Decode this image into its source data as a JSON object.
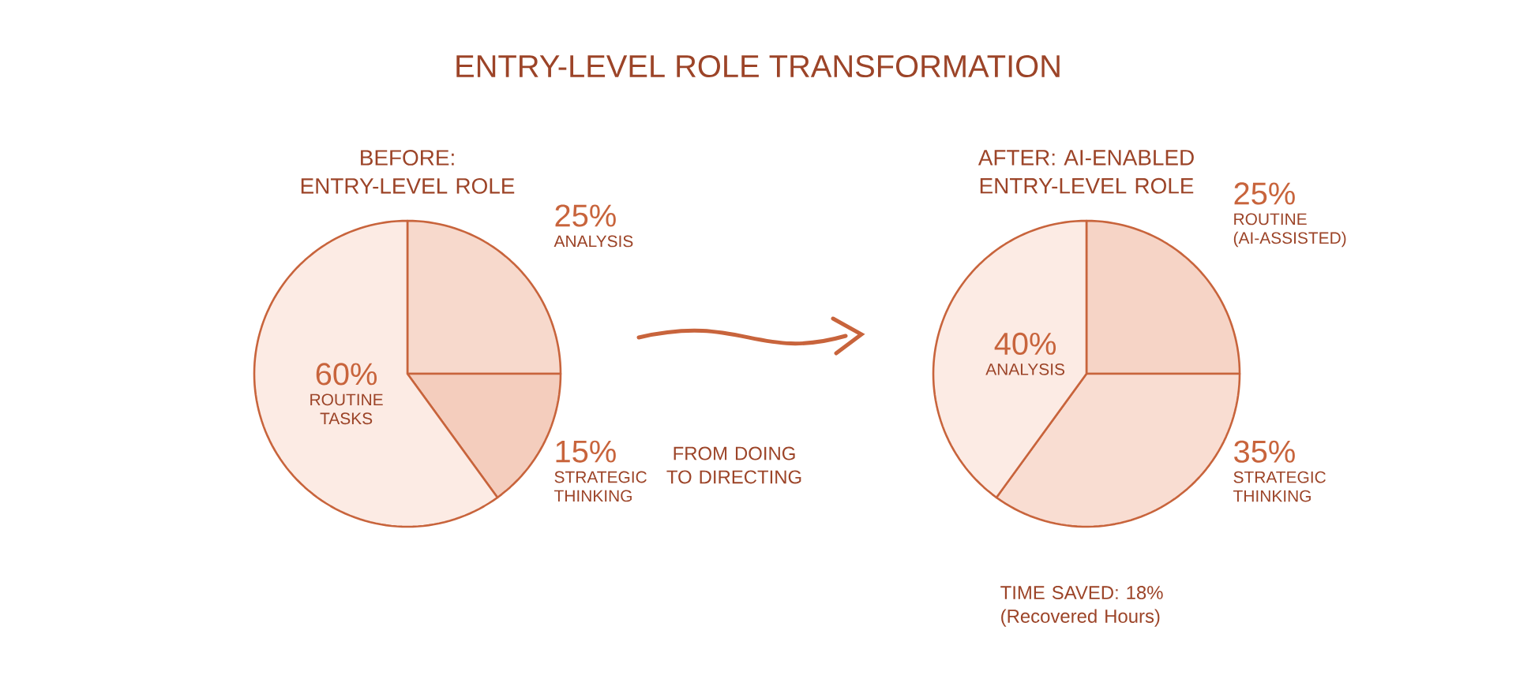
{
  "chart_data": [
    {
      "type": "other",
      "title": "ENTRY-LEVEL ROLE TRANSFORMATION",
      "annotations": [
        "FROM DOING TO DIRECTING"
      ]
    },
    {
      "type": "pie",
      "title": "BEFORE: ENTRY-LEVEL ROLE",
      "categories": [
        "ANALYSIS",
        "STRATEGIC THINKING",
        "ROUTINE TASKS"
      ],
      "values": [
        25,
        15,
        60
      ],
      "value_labels": [
        "25%",
        "15%",
        "60%"
      ],
      "colors": [
        "#f7d9cc",
        "#f4cdbd",
        "#fcebe4"
      ]
    },
    {
      "type": "pie",
      "title": "AFTER: AI-ENABLED ENTRY-LEVEL ROLE",
      "categories": [
        "ROUTINE (AI-ASSISTED)",
        "STRATEGIC THINKING",
        "ANALYSIS"
      ],
      "values": [
        25,
        35,
        40
      ],
      "value_labels": [
        "25%",
        "35%",
        "40%"
      ],
      "colors": [
        "#f6d4c6",
        "#f9ddd2",
        "#fcebe4"
      ],
      "annotations": [
        "TIME SAVED: 18% (Recovered Hours)"
      ]
    }
  ]
}
